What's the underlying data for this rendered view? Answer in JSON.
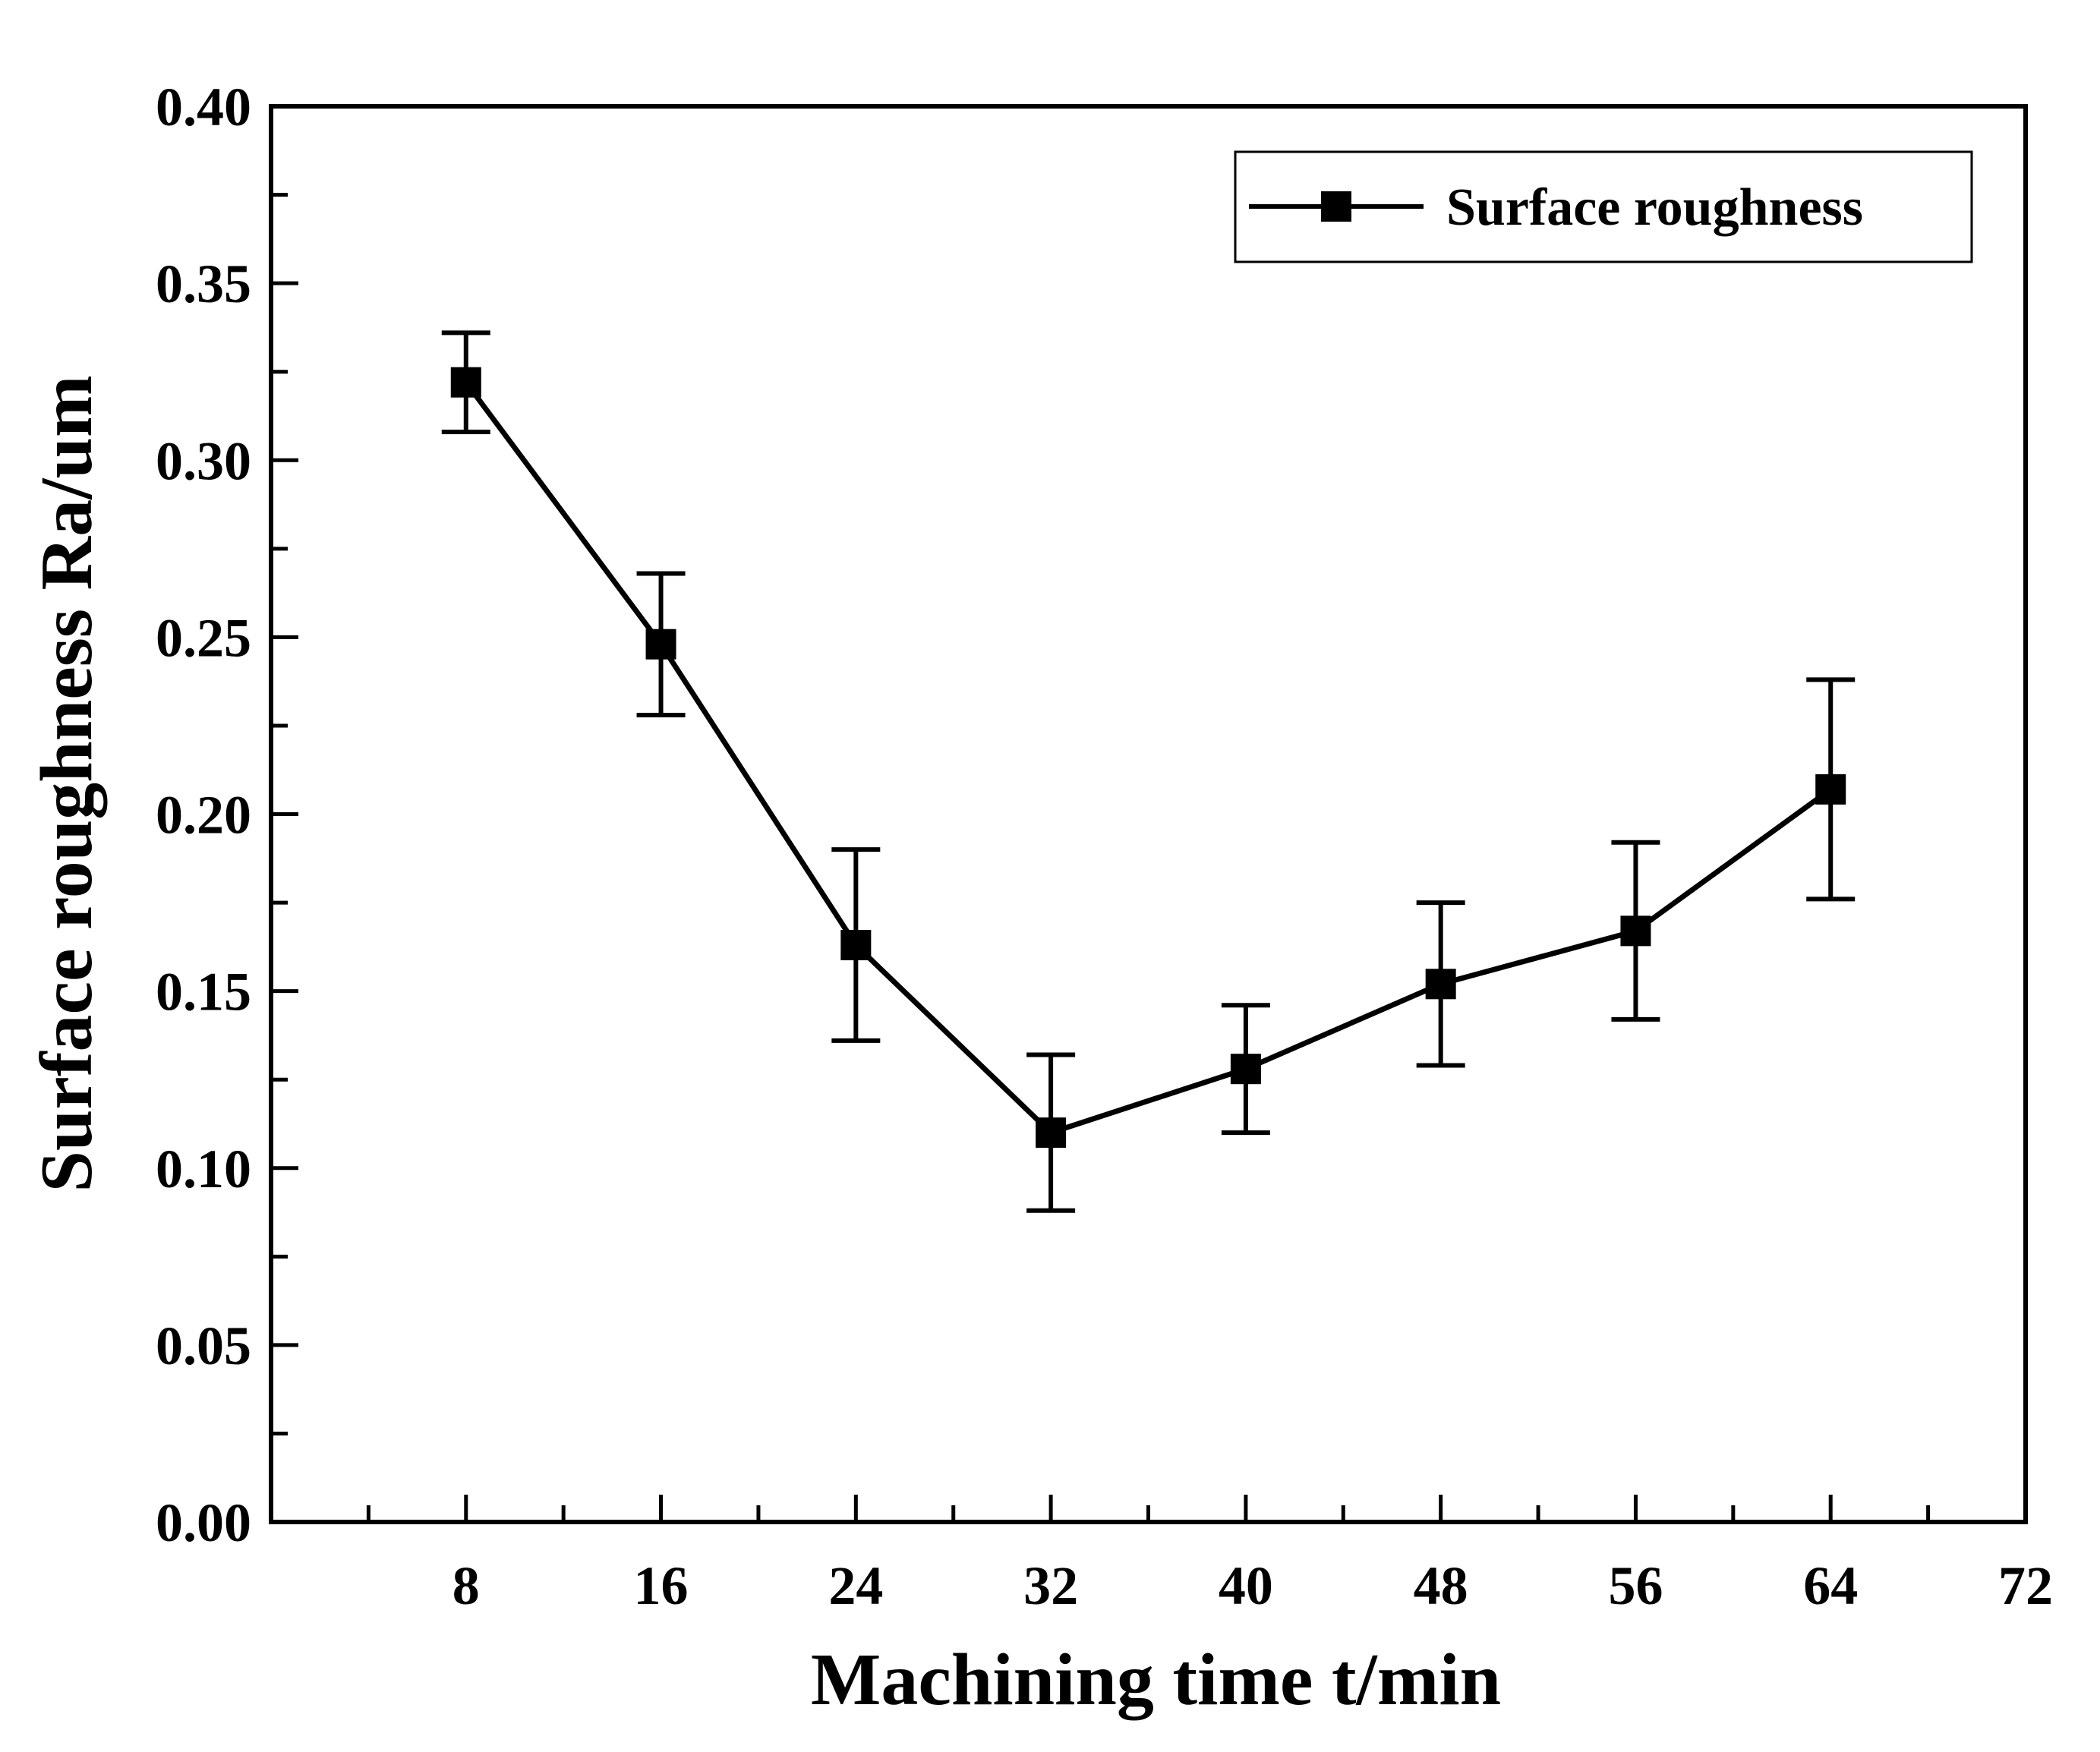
{
  "chart_data": {
    "type": "line",
    "title": "",
    "xlabel": "Machining time t/min",
    "ylabel": "Surface roughness Ra/um",
    "xlim": [
      0,
      72
    ],
    "ylim": [
      0.0,
      0.4
    ],
    "xticks": [
      8,
      16,
      24,
      32,
      40,
      48,
      56,
      64,
      72
    ],
    "xtick_labels": [
      "8",
      "16",
      "24",
      "32",
      "40",
      "48",
      "56",
      "64",
      "72"
    ],
    "x_minor_ticks": [
      4,
      12,
      20,
      28,
      36,
      44,
      52,
      60,
      68
    ],
    "yticks": [
      0.0,
      0.05,
      0.1,
      0.15,
      0.2,
      0.25,
      0.3,
      0.35,
      0.4
    ],
    "ytick_labels": [
      "0.00",
      "0.05",
      "0.10",
      "0.15",
      "0.20",
      "0.25",
      "0.30",
      "0.35",
      "0.40"
    ],
    "y_minor_ticks": [
      0.025,
      0.075,
      0.125,
      0.175,
      0.225,
      0.275,
      0.325,
      0.375
    ],
    "grid": false,
    "legend_position": "top-right",
    "series": [
      {
        "name": "Surface roughness",
        "color": "#000000",
        "marker": "square",
        "x": [
          8,
          16,
          24,
          32,
          40,
          48,
          56,
          64
        ],
        "y": [
          0.322,
          0.248,
          0.163,
          0.11,
          0.128,
          0.152,
          0.167,
          0.207
        ],
        "err_low": [
          0.014,
          0.02,
          0.027,
          0.022,
          0.018,
          0.023,
          0.025,
          0.031
        ],
        "err_high": [
          0.014,
          0.02,
          0.027,
          0.022,
          0.018,
          0.023,
          0.025,
          0.031
        ]
      }
    ]
  }
}
